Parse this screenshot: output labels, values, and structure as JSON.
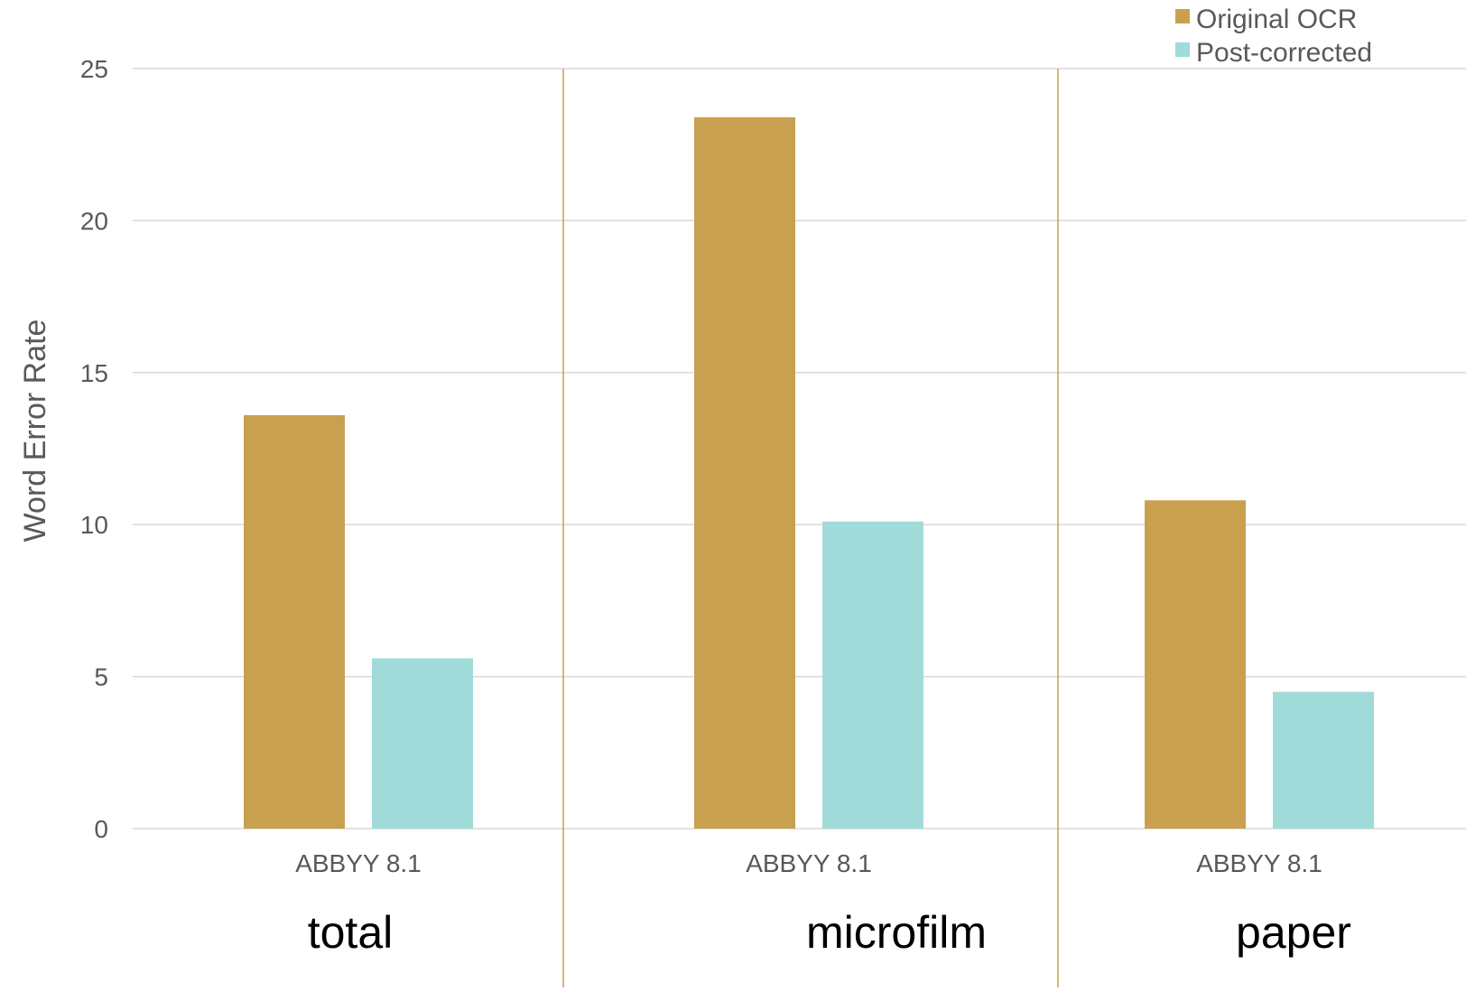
{
  "chart_data": {
    "type": "bar",
    "title": "",
    "xlabel": "",
    "ylabel": "Word Error Rate",
    "ylim": [
      0,
      25
    ],
    "yticks": [
      0,
      5,
      10,
      15,
      20,
      25
    ],
    "grid": true,
    "legend_position": "top-right",
    "colors": {
      "original": "#C9A04F",
      "corrected": "#A0DBD9",
      "grid": "#D9D9D9",
      "separator": "#C9A04F",
      "tick_text": "#595959",
      "group_text": "#000000"
    },
    "series": [
      {
        "name": "Original OCR"
      },
      {
        "name": "Post-corrected"
      }
    ],
    "groups": [
      {
        "label": "total",
        "category": "ABBYY 8.1",
        "values": [
          13.6,
          5.6
        ]
      },
      {
        "label": "microfilm",
        "category": "ABBYY 8.1",
        "values": [
          23.4,
          10.1
        ]
      },
      {
        "label": "paper",
        "category": "ABBYY 8.1",
        "values": [
          10.8,
          4.5
        ]
      }
    ]
  }
}
